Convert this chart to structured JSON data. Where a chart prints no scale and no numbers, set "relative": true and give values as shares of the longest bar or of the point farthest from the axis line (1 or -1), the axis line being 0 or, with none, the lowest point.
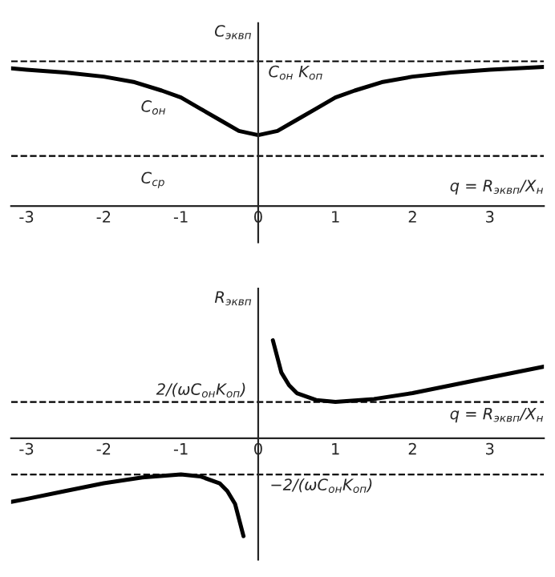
{
  "chart_data": [
    {
      "type": "line",
      "relative": true,
      "ylabel": "C$_{эквп}$",
      "xlabel": "q = R$_{эквп}$/X$_{н}$",
      "xlim": [
        -3.2,
        3.7
      ],
      "xticks": [
        -3,
        -2,
        -1,
        0,
        1,
        2,
        3
      ],
      "line_style": "solid",
      "series": [
        {
          "color": "#000000",
          "x": [
            -3.2,
            -3,
            -2.5,
            -2,
            -1.6,
            -1.25,
            -1,
            -0.75,
            -0.5,
            -0.25,
            0,
            0.25,
            0.5,
            0.75,
            1,
            1.25,
            1.6,
            2,
            2.5,
            3,
            3.7
          ],
          "values": [
            0.99,
            0.98,
            0.96,
            0.93,
            0.89,
            0.83,
            0.78,
            0.7,
            0.62,
            0.54,
            0.51,
            0.54,
            0.62,
            0.7,
            0.78,
            0.83,
            0.89,
            0.93,
            0.96,
            0.98,
            1.0
          ]
        }
      ],
      "ref_lines": [
        {
          "axis": "y",
          "value": 1.04,
          "line_style": "dashed",
          "color": "#000000"
        },
        {
          "axis": "y",
          "value": 0.36,
          "line_style": "dashed",
          "color": "#000000"
        }
      ],
      "annotations": [
        "C$_{он}$",
        "C$_{ср}$",
        "C$_{он}$ K$_{оп}$"
      ]
    },
    {
      "type": "line",
      "relative": true,
      "ylabel": "R$_{эквп}$",
      "xlabel": "q = R$_{эквп}$/X$_{н}$",
      "xlim": [
        -3.2,
        3.7
      ],
      "xticks": [
        -3,
        -2,
        -1,
        0,
        1,
        2,
        3
      ],
      "line_style": "solid",
      "series": [
        {
          "color": "#000000",
          "x": [
            0.19,
            0.3,
            0.4,
            0.5,
            0.75,
            1,
            1.5,
            2,
            2.5,
            3,
            3.7
          ],
          "values": [
            1.0,
            0.67,
            0.54,
            0.46,
            0.39,
            0.37,
            0.4,
            0.46,
            0.54,
            0.62,
            0.73
          ]
        },
        {
          "color": "#000000",
          "x": [
            -3.2,
            -3,
            -2.5,
            -2,
            -1.5,
            -1,
            -0.75,
            -0.5,
            -0.4,
            -0.3,
            -0.19
          ],
          "values": [
            -0.65,
            -0.62,
            -0.54,
            -0.46,
            -0.4,
            -0.37,
            -0.39,
            -0.46,
            -0.54,
            -0.67,
            -1.0
          ]
        }
      ],
      "ref_lines": [
        {
          "axis": "y",
          "value": 0.37,
          "line_style": "dashed",
          "color": "#000000",
          "label": "2/(ωC$_{он}$K$_{оп}$)"
        },
        {
          "axis": "y",
          "value": -0.37,
          "line_style": "dashed",
          "color": "#000000",
          "label": "−2/(ωC$_{он}$K$_{оп}$)"
        }
      ]
    }
  ]
}
